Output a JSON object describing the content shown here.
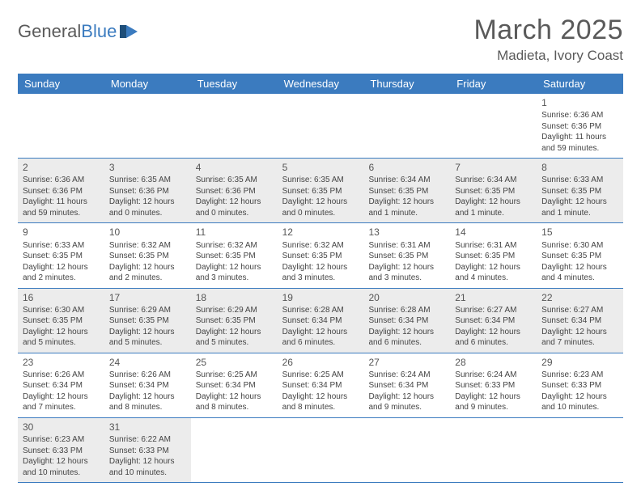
{
  "logo": {
    "text1": "General",
    "text2": "Blue"
  },
  "title": "March 2025",
  "location": "Madieta, Ivory Coast",
  "colors": {
    "header_bg": "#3b7bbf",
    "shade": "#ececec",
    "text": "#444",
    "border": "#3b7bbf"
  },
  "dayNames": [
    "Sunday",
    "Monday",
    "Tuesday",
    "Wednesday",
    "Thursday",
    "Friday",
    "Saturday"
  ],
  "weeks": [
    [
      null,
      null,
      null,
      null,
      null,
      null,
      {
        "n": "1",
        "sr": "Sunrise: 6:36 AM",
        "ss": "Sunset: 6:36 PM",
        "dl": "Daylight: 11 hours and 59 minutes.",
        "shade": false
      }
    ],
    [
      {
        "n": "2",
        "sr": "Sunrise: 6:36 AM",
        "ss": "Sunset: 6:36 PM",
        "dl": "Daylight: 11 hours and 59 minutes.",
        "shade": true
      },
      {
        "n": "3",
        "sr": "Sunrise: 6:35 AM",
        "ss": "Sunset: 6:36 PM",
        "dl": "Daylight: 12 hours and 0 minutes.",
        "shade": true
      },
      {
        "n": "4",
        "sr": "Sunrise: 6:35 AM",
        "ss": "Sunset: 6:36 PM",
        "dl": "Daylight: 12 hours and 0 minutes.",
        "shade": true
      },
      {
        "n": "5",
        "sr": "Sunrise: 6:35 AM",
        "ss": "Sunset: 6:35 PM",
        "dl": "Daylight: 12 hours and 0 minutes.",
        "shade": true
      },
      {
        "n": "6",
        "sr": "Sunrise: 6:34 AM",
        "ss": "Sunset: 6:35 PM",
        "dl": "Daylight: 12 hours and 1 minute.",
        "shade": true
      },
      {
        "n": "7",
        "sr": "Sunrise: 6:34 AM",
        "ss": "Sunset: 6:35 PM",
        "dl": "Daylight: 12 hours and 1 minute.",
        "shade": true
      },
      {
        "n": "8",
        "sr": "Sunrise: 6:33 AM",
        "ss": "Sunset: 6:35 PM",
        "dl": "Daylight: 12 hours and 1 minute.",
        "shade": true
      }
    ],
    [
      {
        "n": "9",
        "sr": "Sunrise: 6:33 AM",
        "ss": "Sunset: 6:35 PM",
        "dl": "Daylight: 12 hours and 2 minutes.",
        "shade": false
      },
      {
        "n": "10",
        "sr": "Sunrise: 6:32 AM",
        "ss": "Sunset: 6:35 PM",
        "dl": "Daylight: 12 hours and 2 minutes.",
        "shade": false
      },
      {
        "n": "11",
        "sr": "Sunrise: 6:32 AM",
        "ss": "Sunset: 6:35 PM",
        "dl": "Daylight: 12 hours and 3 minutes.",
        "shade": false
      },
      {
        "n": "12",
        "sr": "Sunrise: 6:32 AM",
        "ss": "Sunset: 6:35 PM",
        "dl": "Daylight: 12 hours and 3 minutes.",
        "shade": false
      },
      {
        "n": "13",
        "sr": "Sunrise: 6:31 AM",
        "ss": "Sunset: 6:35 PM",
        "dl": "Daylight: 12 hours and 3 minutes.",
        "shade": false
      },
      {
        "n": "14",
        "sr": "Sunrise: 6:31 AM",
        "ss": "Sunset: 6:35 PM",
        "dl": "Daylight: 12 hours and 4 minutes.",
        "shade": false
      },
      {
        "n": "15",
        "sr": "Sunrise: 6:30 AM",
        "ss": "Sunset: 6:35 PM",
        "dl": "Daylight: 12 hours and 4 minutes.",
        "shade": false
      }
    ],
    [
      {
        "n": "16",
        "sr": "Sunrise: 6:30 AM",
        "ss": "Sunset: 6:35 PM",
        "dl": "Daylight: 12 hours and 5 minutes.",
        "shade": true
      },
      {
        "n": "17",
        "sr": "Sunrise: 6:29 AM",
        "ss": "Sunset: 6:35 PM",
        "dl": "Daylight: 12 hours and 5 minutes.",
        "shade": true
      },
      {
        "n": "18",
        "sr": "Sunrise: 6:29 AM",
        "ss": "Sunset: 6:35 PM",
        "dl": "Daylight: 12 hours and 5 minutes.",
        "shade": true
      },
      {
        "n": "19",
        "sr": "Sunrise: 6:28 AM",
        "ss": "Sunset: 6:34 PM",
        "dl": "Daylight: 12 hours and 6 minutes.",
        "shade": true
      },
      {
        "n": "20",
        "sr": "Sunrise: 6:28 AM",
        "ss": "Sunset: 6:34 PM",
        "dl": "Daylight: 12 hours and 6 minutes.",
        "shade": true
      },
      {
        "n": "21",
        "sr": "Sunrise: 6:27 AM",
        "ss": "Sunset: 6:34 PM",
        "dl": "Daylight: 12 hours and 6 minutes.",
        "shade": true
      },
      {
        "n": "22",
        "sr": "Sunrise: 6:27 AM",
        "ss": "Sunset: 6:34 PM",
        "dl": "Daylight: 12 hours and 7 minutes.",
        "shade": true
      }
    ],
    [
      {
        "n": "23",
        "sr": "Sunrise: 6:26 AM",
        "ss": "Sunset: 6:34 PM",
        "dl": "Daylight: 12 hours and 7 minutes.",
        "shade": false
      },
      {
        "n": "24",
        "sr": "Sunrise: 6:26 AM",
        "ss": "Sunset: 6:34 PM",
        "dl": "Daylight: 12 hours and 8 minutes.",
        "shade": false
      },
      {
        "n": "25",
        "sr": "Sunrise: 6:25 AM",
        "ss": "Sunset: 6:34 PM",
        "dl": "Daylight: 12 hours and 8 minutes.",
        "shade": false
      },
      {
        "n": "26",
        "sr": "Sunrise: 6:25 AM",
        "ss": "Sunset: 6:34 PM",
        "dl": "Daylight: 12 hours and 8 minutes.",
        "shade": false
      },
      {
        "n": "27",
        "sr": "Sunrise: 6:24 AM",
        "ss": "Sunset: 6:34 PM",
        "dl": "Daylight: 12 hours and 9 minutes.",
        "shade": false
      },
      {
        "n": "28",
        "sr": "Sunrise: 6:24 AM",
        "ss": "Sunset: 6:33 PM",
        "dl": "Daylight: 12 hours and 9 minutes.",
        "shade": false
      },
      {
        "n": "29",
        "sr": "Sunrise: 6:23 AM",
        "ss": "Sunset: 6:33 PM",
        "dl": "Daylight: 12 hours and 10 minutes.",
        "shade": false
      }
    ],
    [
      {
        "n": "30",
        "sr": "Sunrise: 6:23 AM",
        "ss": "Sunset: 6:33 PM",
        "dl": "Daylight: 12 hours and 10 minutes.",
        "shade": true
      },
      {
        "n": "31",
        "sr": "Sunrise: 6:22 AM",
        "ss": "Sunset: 6:33 PM",
        "dl": "Daylight: 12 hours and 10 minutes.",
        "shade": true
      },
      null,
      null,
      null,
      null,
      null
    ]
  ]
}
